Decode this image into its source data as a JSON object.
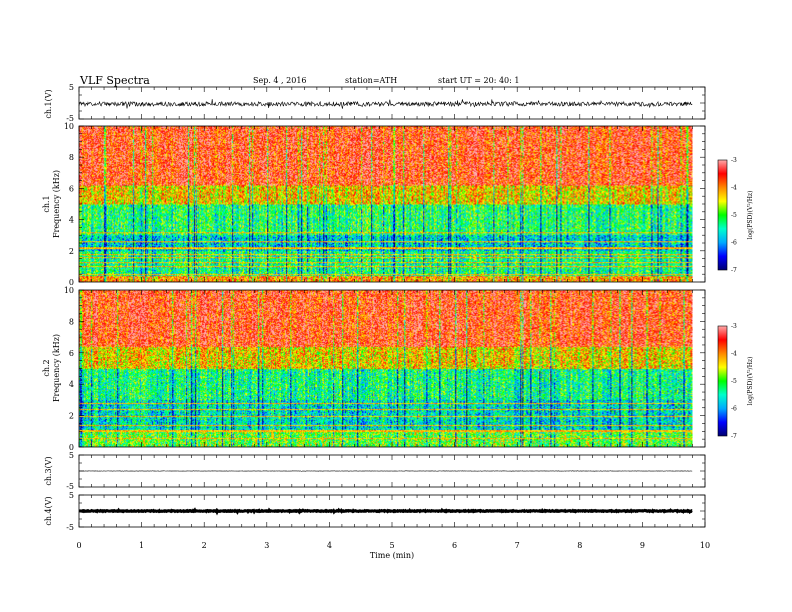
{
  "header": {
    "title": "VLF  Spectra",
    "date": "Sep. 4  , 2016",
    "station": "station=ATH",
    "start": "start  UT  =    20: 40: 1"
  },
  "chart_data": {
    "type": "heatmap",
    "x": {
      "label": "Time  (min)",
      "range": [
        0,
        10
      ],
      "ticks": [
        "0",
        "1",
        "2",
        "3",
        "4",
        "5",
        "6",
        "7",
        "8",
        "9",
        "10"
      ],
      "data_end": 9.8
    },
    "panels": [
      {
        "kind": "waveform",
        "ylabel": "ch.1(V)",
        "yrange": [
          -5,
          5
        ],
        "yticks": [
          "5",
          "-5"
        ],
        "amplitude_range": [
          -1.8,
          1.2
        ]
      },
      {
        "kind": "spectrogram",
        "ylabel_channel": "ch.1",
        "ylabel": "Frequency  (kHz)",
        "yrange": [
          0,
          10
        ],
        "yticks": [
          "0",
          "2",
          "4",
          "6",
          "8",
          "10"
        ],
        "spectral_bands": [
          {
            "from": 6.2,
            "to": 10,
            "level": -3.5
          },
          {
            "from": 5.0,
            "to": 6.2,
            "level": -4.3
          },
          {
            "from": 3.0,
            "to": 5.0,
            "level": -5.2
          },
          {
            "from": 2.0,
            "to": 3.0,
            "level": -5.7
          },
          {
            "from": 0.4,
            "to": 2.0,
            "level": -5.3
          },
          {
            "from": 0.0,
            "to": 0.4,
            "level": -4.0
          }
        ],
        "horizontal_lines_khz": [
          0.5,
          1.0,
          1.3,
          1.6,
          1.8,
          2.2,
          2.6,
          3.2
        ]
      },
      {
        "kind": "spectrogram",
        "ylabel_channel": "ch.2",
        "ylabel": "Frequency  (kHz)",
        "yrange": [
          0,
          10
        ],
        "yticks": [
          "0",
          "2",
          "4",
          "6",
          "8",
          "10"
        ],
        "spectral_bands": [
          {
            "from": 6.4,
            "to": 10,
            "level": -3.5
          },
          {
            "from": 5.0,
            "to": 6.4,
            "level": -4.3
          },
          {
            "from": 3.0,
            "to": 5.0,
            "level": -5.3
          },
          {
            "from": 1.0,
            "to": 3.0,
            "level": -5.6
          },
          {
            "from": 0.0,
            "to": 1.0,
            "level": -4.9
          }
        ],
        "horizontal_lines_khz": [
          0.6,
          1.0,
          1.1,
          1.4,
          2.0,
          2.4,
          2.8
        ]
      },
      {
        "kind": "waveform",
        "ylabel": "ch.3(V)",
        "yrange": [
          -5,
          5
        ],
        "yticks": [
          "5",
          "-5"
        ],
        "amplitude_range": [
          -0.1,
          0.1
        ],
        "offset": 0
      },
      {
        "kind": "waveform",
        "ylabel": "ch.4(V)",
        "yrange": [
          -5,
          5
        ],
        "yticks": [
          "5",
          "-5"
        ],
        "amplitude_range": [
          -0.3,
          0.3
        ],
        "offset": 0
      }
    ],
    "colorbar": {
      "label": "log(PSD)(V²/Hz)",
      "range": [
        -7,
        -3
      ],
      "ticks": [
        "-3",
        "-4",
        "-5",
        "-6",
        "-7"
      ],
      "stops": [
        "#000070",
        "#0000ff",
        "#00aaff",
        "#00ffcc",
        "#00ff00",
        "#ffff00",
        "#ff8800",
        "#ff0000",
        "#ffaaaa"
      ]
    }
  }
}
